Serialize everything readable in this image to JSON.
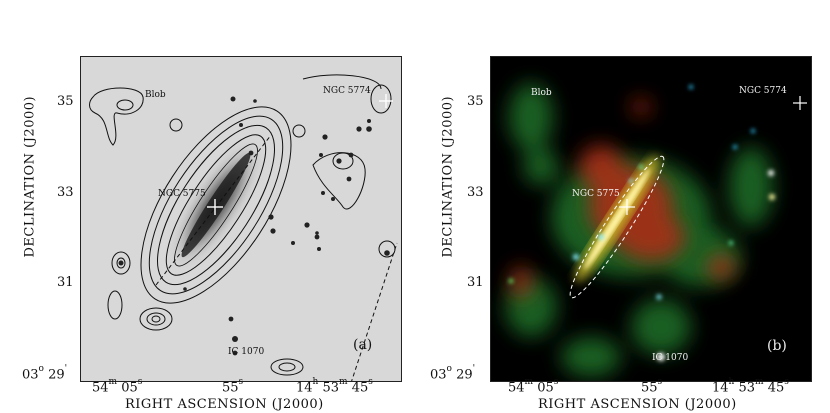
{
  "panel_a": {
    "id_label": "(a)",
    "labels": {
      "blob": "Blob",
      "ngc5774": "NGC 5774",
      "ngc5775": "NGC 5775",
      "ic1070": "IC 1070"
    },
    "yticks": [
      {
        "main": "35",
        "sup": ""
      },
      {
        "main": "33",
        "sup": ""
      },
      {
        "main": "31",
        "sup": ""
      }
    ],
    "ytick_bottom": {
      "main": "03",
      "sup": "o",
      "tail": "29",
      "tail_sup": "'"
    },
    "xticks": [
      {
        "main": "54",
        "sup": "m",
        "tail": "05",
        "tail_sup": "s"
      },
      {
        "main": "55",
        "sup": "s",
        "tail": "",
        "tail_sup": ""
      },
      {
        "main": "14",
        "sup": "h",
        "tail": "53",
        "tail_sup": "m",
        "tail2": "45",
        "tail2_sup": "s"
      }
    ],
    "xlabel": "RIGHT ASCENSION (J2000)",
    "ylabel": "DECLINATION (J2000)"
  },
  "panel_b": {
    "id_label": "(b)",
    "labels": {
      "blob": "Blob",
      "ngc5774": "NGC 5774",
      "ngc5775": "NGC 5775",
      "ic1070": "IC 1070"
    },
    "yticks": [
      {
        "main": "35",
        "sup": ""
      },
      {
        "main": "33",
        "sup": ""
      },
      {
        "main": "31",
        "sup": ""
      }
    ],
    "ytick_bottom": {
      "main": "03",
      "sup": "o",
      "tail": "29",
      "tail_sup": "'"
    },
    "xticks": [
      {
        "main": "54",
        "sup": "m",
        "tail": "05",
        "tail_sup": "s"
      },
      {
        "main": "55",
        "sup": "s",
        "tail": "",
        "tail_sup": ""
      },
      {
        "main": "14",
        "sup": "h",
        "tail": "53",
        "tail_sup": "m",
        "tail2": "45",
        "tail2_sup": "s"
      }
    ],
    "xlabel": "RIGHT ASCENSION (J2000)",
    "ylabel": "DECLINATION (J2000)"
  },
  "colors": {
    "frame": "#222222",
    "panel_a_bg": "#dcdcdc",
    "panel_b_bg": "#000000",
    "emission_red": "#c8321e",
    "emission_green": "#2ea03a",
    "highlight": "#fff2a0"
  }
}
